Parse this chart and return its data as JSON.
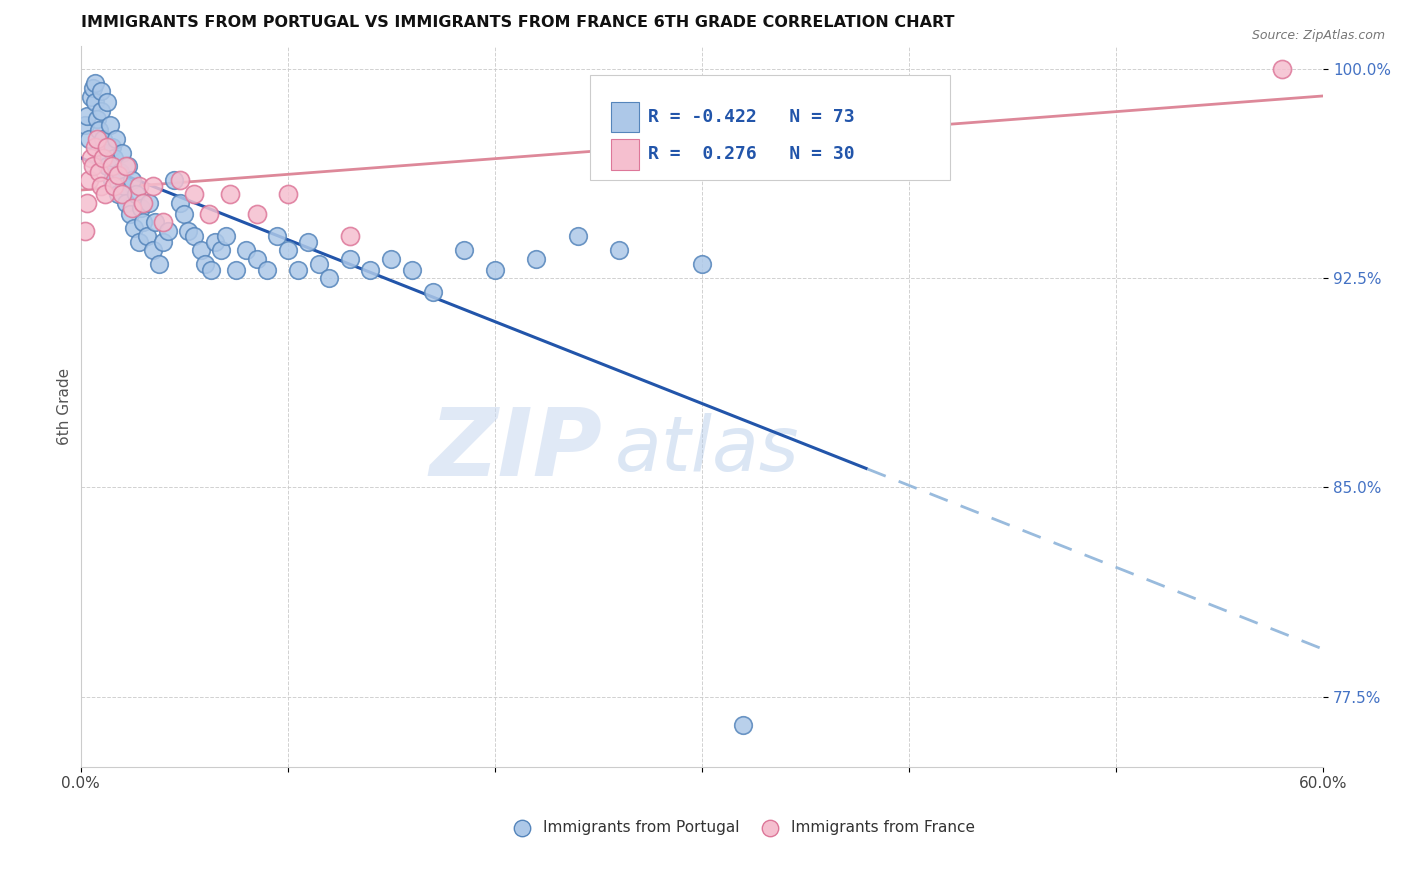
{
  "title": "IMMIGRANTS FROM PORTUGAL VS IMMIGRANTS FROM FRANCE 6TH GRADE CORRELATION CHART",
  "source": "Source: ZipAtlas.com",
  "ylabel": "6th Grade",
  "xlim": [
    0.0,
    0.6
  ],
  "ylim": [
    0.75,
    1.008
  ],
  "xticks": [
    0.0,
    0.1,
    0.2,
    0.3,
    0.4,
    0.5,
    0.6
  ],
  "xticklabels": [
    "0.0%",
    "",
    "",
    "",
    "",
    "",
    "60.0%"
  ],
  "yticks": [
    0.775,
    0.85,
    0.925,
    1.0
  ],
  "yticklabels": [
    "77.5%",
    "85.0%",
    "92.5%",
    "100.0%"
  ],
  "ytick_color": "#4472c4",
  "grid_color": "#cccccc",
  "portugal_color": "#adc8e8",
  "portugal_edge_color": "#5585bb",
  "france_color": "#f5bfcf",
  "france_edge_color": "#dd7799",
  "portugal_line_color": "#2255aa",
  "france_line_color": "#dd8899",
  "trend_line_dashed_color": "#99bbdd",
  "r_portugal": -0.422,
  "n_portugal": 73,
  "r_france": 0.276,
  "n_france": 30,
  "legend_label_portugal": "Immigrants from Portugal",
  "legend_label_france": "Immigrants from France",
  "portugal_x": [
    0.002,
    0.003,
    0.004,
    0.005,
    0.006,
    0.007,
    0.007,
    0.008,
    0.009,
    0.01,
    0.01,
    0.011,
    0.012,
    0.013,
    0.013,
    0.014,
    0.015,
    0.015,
    0.016,
    0.017,
    0.018,
    0.019,
    0.02,
    0.021,
    0.022,
    0.023,
    0.024,
    0.025,
    0.026,
    0.027,
    0.028,
    0.029,
    0.03,
    0.032,
    0.033,
    0.035,
    0.036,
    0.038,
    0.04,
    0.042,
    0.045,
    0.048,
    0.05,
    0.052,
    0.055,
    0.058,
    0.06,
    0.063,
    0.065,
    0.068,
    0.07,
    0.075,
    0.08,
    0.085,
    0.09,
    0.095,
    0.1,
    0.105,
    0.11,
    0.115,
    0.12,
    0.13,
    0.14,
    0.15,
    0.16,
    0.17,
    0.185,
    0.2,
    0.22,
    0.24,
    0.26,
    0.3,
    0.32
  ],
  "portugal_y": [
    0.98,
    0.983,
    0.975,
    0.99,
    0.993,
    0.988,
    0.995,
    0.982,
    0.978,
    0.985,
    0.992,
    0.975,
    0.97,
    0.988,
    0.965,
    0.98,
    0.972,
    0.96,
    0.968,
    0.975,
    0.955,
    0.963,
    0.97,
    0.958,
    0.952,
    0.965,
    0.948,
    0.96,
    0.943,
    0.955,
    0.938,
    0.95,
    0.945,
    0.94,
    0.952,
    0.935,
    0.945,
    0.93,
    0.938,
    0.942,
    0.96,
    0.952,
    0.948,
    0.942,
    0.94,
    0.935,
    0.93,
    0.928,
    0.938,
    0.935,
    0.94,
    0.928,
    0.935,
    0.932,
    0.928,
    0.94,
    0.935,
    0.928,
    0.938,
    0.93,
    0.925,
    0.932,
    0.928,
    0.932,
    0.928,
    0.92,
    0.935,
    0.928,
    0.932,
    0.94,
    0.935,
    0.93,
    0.765
  ],
  "france_x": [
    0.002,
    0.003,
    0.004,
    0.005,
    0.006,
    0.007,
    0.008,
    0.009,
    0.01,
    0.011,
    0.012,
    0.013,
    0.015,
    0.016,
    0.018,
    0.02,
    0.022,
    0.025,
    0.028,
    0.03,
    0.035,
    0.04,
    0.048,
    0.055,
    0.062,
    0.072,
    0.085,
    0.1,
    0.13,
    0.58
  ],
  "france_y": [
    0.942,
    0.952,
    0.96,
    0.968,
    0.965,
    0.972,
    0.975,
    0.963,
    0.958,
    0.968,
    0.955,
    0.972,
    0.965,
    0.958,
    0.962,
    0.955,
    0.965,
    0.95,
    0.958,
    0.952,
    0.958,
    0.945,
    0.96,
    0.955,
    0.948,
    0.955,
    0.948,
    0.955,
    0.94,
    1.0
  ],
  "watermark_zip": "ZIP",
  "watermark_atlas": "atlas",
  "background_color": "#ffffff"
}
